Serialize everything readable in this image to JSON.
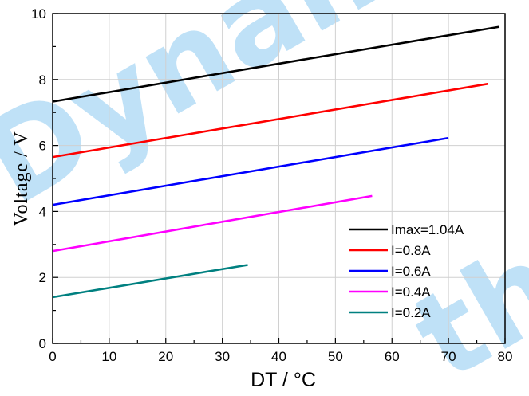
{
  "watermark": {
    "text_a": "Dynamic",
    "text_b": "th",
    "color": "#bfe1f7"
  },
  "chart_data": {
    "type": "line",
    "title": "",
    "xlabel": "DT / °C",
    "ylabel": "Voltage / V",
    "xlim": [
      0,
      80
    ],
    "ylim": [
      0,
      10
    ],
    "x_major_ticks": [
      0,
      10,
      20,
      30,
      40,
      50,
      60,
      70,
      80
    ],
    "y_major_ticks": [
      0,
      2,
      4,
      6,
      8,
      10
    ],
    "grid": true,
    "legend_position": "bottom-right",
    "series": [
      {
        "name": "Imax=1.04A",
        "color": "#000000",
        "x": [
          0,
          79
        ],
        "values": [
          7.33,
          9.6
        ]
      },
      {
        "name": "I=0.8A",
        "color": "#ff0000",
        "x": [
          0,
          77
        ],
        "values": [
          5.65,
          7.87
        ]
      },
      {
        "name": "I=0.6A",
        "color": "#0000ff",
        "x": [
          0,
          70
        ],
        "values": [
          4.2,
          6.23
        ]
      },
      {
        "name": "I=0.4A",
        "color": "#ff00ff",
        "x": [
          0,
          56.5
        ],
        "values": [
          2.8,
          4.47
        ]
      },
      {
        "name": "I=0.2A",
        "color": "#008080",
        "x": [
          0,
          34.5
        ],
        "values": [
          1.4,
          2.38
        ]
      }
    ]
  }
}
